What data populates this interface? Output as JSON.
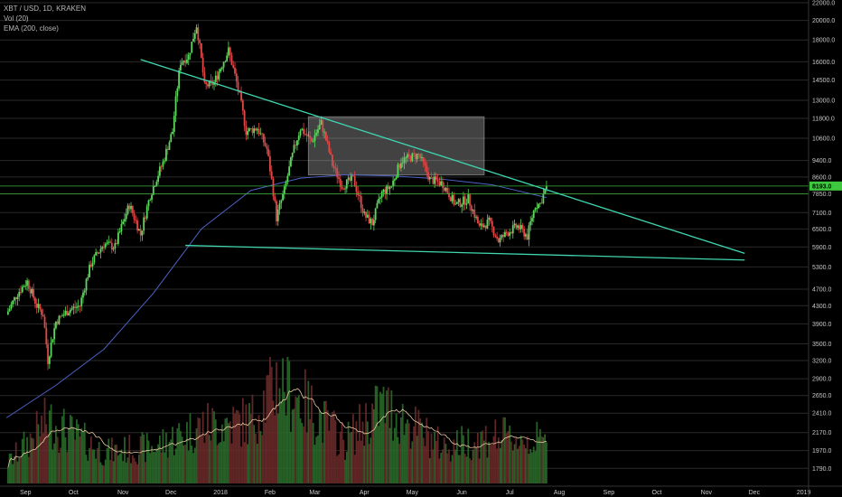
{
  "header": {
    "symbol": "XBT / USD, 1D, KRAKEN",
    "volume_label": "Vol (20)",
    "ema_label": "EMA (200, close)"
  },
  "colors": {
    "up": "#5cd65c",
    "down": "#e04848",
    "trendline": "#3fd6b0",
    "ema": "#4b62c4",
    "volume_ma": "#e8c8a0",
    "grid": "#2a2a2a",
    "level": "#3cb43c",
    "box": "#bdbdbd"
  },
  "last_price": "8193.0",
  "chart_data": {
    "type": "candlestick",
    "title": "XBT / USD, 1D, KRAKEN",
    "xlabel": "",
    "ylabel": "",
    "log_scale": true,
    "grid": true,
    "ylim": [
      1650,
      22000
    ],
    "y_ticks": [
      "22000.0",
      "20000.0",
      "18000.0",
      "16000.0",
      "14500.0",
      "13000.0",
      "11800.0",
      "10600.0",
      "9400.0",
      "8600.0",
      "7850.0",
      "7100.0",
      "6500.0",
      "5900.0",
      "5300.0",
      "4700.0",
      "4300.0",
      "3900.0",
      "3500.0",
      "3200.0",
      "2900.0",
      "2650.0",
      "2410.0",
      "2170.0",
      "1970.0",
      "1790.0"
    ],
    "x_ticks": [
      "Sep",
      "Oct",
      "Nov",
      "Dec",
      "2018",
      "Feb",
      "Mar",
      "Apr",
      "May",
      "Jun",
      "Jul",
      "Aug",
      "Sep",
      "Oct",
      "Nov",
      "Dec",
      "2019"
    ],
    "price_series": [
      {
        "date": "2017-08-20",
        "close": 4100
      },
      {
        "date": "2017-08-27",
        "close": 4600
      },
      {
        "date": "2017-09-02",
        "close": 4900
      },
      {
        "date": "2017-09-08",
        "close": 4300
      },
      {
        "date": "2017-09-12",
        "close": 4100
      },
      {
        "date": "2017-09-15",
        "close": 3200
      },
      {
        "date": "2017-09-20",
        "close": 3950
      },
      {
        "date": "2017-09-28",
        "close": 4200
      },
      {
        "date": "2017-10-05",
        "close": 4300
      },
      {
        "date": "2017-10-12",
        "close": 5400
      },
      {
        "date": "2017-10-20",
        "close": 6000
      },
      {
        "date": "2017-10-27",
        "close": 5900
      },
      {
        "date": "2017-11-05",
        "close": 7400
      },
      {
        "date": "2017-11-12",
        "close": 6300
      },
      {
        "date": "2017-11-18",
        "close": 7800
      },
      {
        "date": "2017-11-26",
        "close": 9300
      },
      {
        "date": "2017-12-02",
        "close": 11000
      },
      {
        "date": "2017-12-07",
        "close": 16000
      },
      {
        "date": "2017-12-12",
        "close": 16500
      },
      {
        "date": "2017-12-17",
        "close": 19500
      },
      {
        "date": "2017-12-22",
        "close": 14000
      },
      {
        "date": "2017-12-28",
        "close": 14300
      },
      {
        "date": "2018-01-06",
        "close": 17000
      },
      {
        "date": "2018-01-12",
        "close": 13800
      },
      {
        "date": "2018-01-17",
        "close": 11000
      },
      {
        "date": "2018-01-24",
        "close": 11200
      },
      {
        "date": "2018-01-30",
        "close": 10000
      },
      {
        "date": "2018-02-05",
        "close": 6900
      },
      {
        "date": "2018-02-10",
        "close": 8000
      },
      {
        "date": "2018-02-16",
        "close": 10000
      },
      {
        "date": "2018-02-20",
        "close": 11200
      },
      {
        "date": "2018-02-27",
        "close": 10400
      },
      {
        "date": "2018-03-05",
        "close": 11500
      },
      {
        "date": "2018-03-12",
        "close": 9200
      },
      {
        "date": "2018-03-18",
        "close": 8200
      },
      {
        "date": "2018-03-25",
        "close": 8500
      },
      {
        "date": "2018-04-01",
        "close": 7000
      },
      {
        "date": "2018-04-06",
        "close": 6700
      },
      {
        "date": "2018-04-12",
        "close": 7900
      },
      {
        "date": "2018-04-18",
        "close": 8200
      },
      {
        "date": "2018-04-24",
        "close": 9400
      },
      {
        "date": "2018-05-05",
        "close": 9700
      },
      {
        "date": "2018-05-12",
        "close": 8500
      },
      {
        "date": "2018-05-20",
        "close": 8300
      },
      {
        "date": "2018-05-28",
        "close": 7400
      },
      {
        "date": "2018-06-05",
        "close": 7650
      },
      {
        "date": "2018-06-12",
        "close": 6550
      },
      {
        "date": "2018-06-18",
        "close": 6750
      },
      {
        "date": "2018-06-24",
        "close": 6100
      },
      {
        "date": "2018-06-30",
        "close": 6400
      },
      {
        "date": "2018-07-06",
        "close": 6600
      },
      {
        "date": "2018-07-12",
        "close": 6250
      },
      {
        "date": "2018-07-17",
        "close": 7400
      },
      {
        "date": "2018-07-20",
        "close": 7450
      },
      {
        "date": "2018-07-24",
        "close": 8193
      }
    ],
    "ema_200": [
      {
        "date": "2017-08-20",
        "value": 2350
      },
      {
        "date": "2017-09-20",
        "value": 2800
      },
      {
        "date": "2017-10-20",
        "value": 3400
      },
      {
        "date": "2017-11-20",
        "value": 4600
      },
      {
        "date": "2017-12-20",
        "value": 6500
      },
      {
        "date": "2018-01-20",
        "value": 8000
      },
      {
        "date": "2018-02-20",
        "value": 8550
      },
      {
        "date": "2018-03-20",
        "value": 8700
      },
      {
        "date": "2018-04-20",
        "value": 8650
      },
      {
        "date": "2018-05-20",
        "value": 8500
      },
      {
        "date": "2018-06-20",
        "value": 8250
      },
      {
        "date": "2018-07-24",
        "value": 7700
      }
    ],
    "volume_levels": [
      {
        "date": "2017-08-20",
        "volume": 0.18
      },
      {
        "date": "2017-09-15",
        "volume": 0.6
      },
      {
        "date": "2017-10-20",
        "volume": 0.3
      },
      {
        "date": "2017-11-20",
        "volume": 0.35
      },
      {
        "date": "2017-12-20",
        "volume": 0.55
      },
      {
        "date": "2018-01-20",
        "volume": 0.6
      },
      {
        "date": "2018-02-06",
        "volume": 1.0
      },
      {
        "date": "2018-03-20",
        "volume": 0.4
      },
      {
        "date": "2018-04-12",
        "volume": 0.75
      },
      {
        "date": "2018-05-20",
        "volume": 0.35
      },
      {
        "date": "2018-06-20",
        "volume": 0.45
      },
      {
        "date": "2018-07-24",
        "volume": 0.4
      }
    ],
    "annotations": {
      "descending_trendline": [
        {
          "date": "2017-11-12",
          "price": 16200
        },
        {
          "date": "2018-11-25",
          "price": 5700
        }
      ],
      "support_trendline": [
        {
          "date": "2017-12-10",
          "price": 5950
        },
        {
          "date": "2018-11-25",
          "price": 5500
        }
      ],
      "resistance_box": {
        "date_from": "2018-02-25",
        "date_to": "2018-06-15",
        "price_low": 8700,
        "price_high": 11900
      },
      "horizontal_levels": [
        8193,
        7850
      ]
    }
  }
}
